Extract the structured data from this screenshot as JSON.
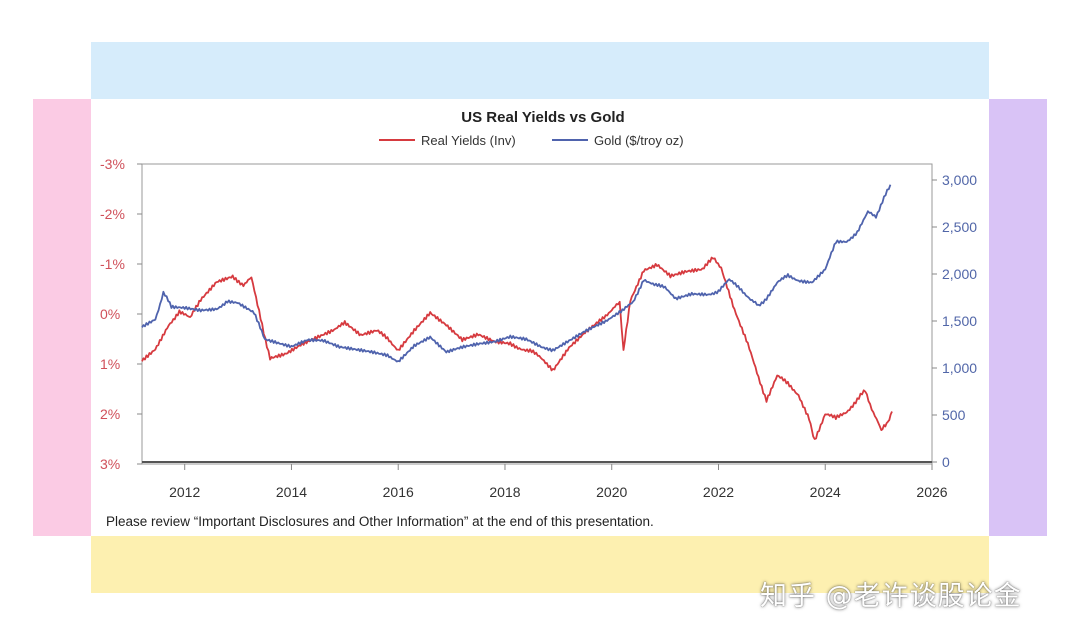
{
  "colors": {
    "band_top": "#d6ecfb",
    "band_bottom": "#fdf0b0",
    "band_left": "#fbcbe4",
    "band_right": "#d9c3f6",
    "real_yields": "#d63a3f",
    "gold": "#4f63ad"
  },
  "footer": {
    "disclaimer": "Please review “Important Disclosures and Other Information” at the end of this presentation."
  },
  "watermark": "知乎 @老许谈股论金",
  "chart_data": {
    "type": "line",
    "title": "US Real Yields vs Gold",
    "legend_position": "top-center",
    "grid": false,
    "x_axis": {
      "ticks": [
        "2012",
        "2014",
        "2016",
        "2018",
        "2020",
        "2022",
        "2024",
        "2026"
      ],
      "range": [
        2011.2,
        2026
      ]
    },
    "y_left": {
      "inverted": true,
      "range": [
        -3,
        3
      ],
      "ticks": [
        -3,
        -2,
        -1,
        0,
        1,
        2,
        3
      ],
      "tick_labels": [
        "-3%",
        "-2%",
        "-1%",
        "0%",
        "1%",
        "2%",
        "3%"
      ]
    },
    "y_right": {
      "range": [
        0,
        3000
      ],
      "ticks": [
        0,
        500,
        1000,
        1500,
        2000,
        2500,
        3000
      ],
      "tick_labels": [
        "0",
        "500",
        "1,000",
        "1,500",
        "2,000",
        "2,500",
        "3,000"
      ]
    },
    "series": [
      {
        "name": "Real Yields (Inv)",
        "axis": "left",
        "color": "#d63a3f",
        "points": [
          [
            2011.2,
            0.95
          ],
          [
            2011.45,
            0.7
          ],
          [
            2011.7,
            0.2
          ],
          [
            2011.9,
            -0.05
          ],
          [
            2012.1,
            0.1
          ],
          [
            2012.3,
            -0.3
          ],
          [
            2012.6,
            -0.65
          ],
          [
            2012.9,
            -0.75
          ],
          [
            2013.1,
            -0.6
          ],
          [
            2013.25,
            -0.7
          ],
          [
            2013.45,
            0.2
          ],
          [
            2013.6,
            0.9
          ],
          [
            2013.9,
            0.8
          ],
          [
            2014.2,
            0.6
          ],
          [
            2014.5,
            0.45
          ],
          [
            2014.8,
            0.3
          ],
          [
            2015.0,
            0.2
          ],
          [
            2015.3,
            0.45
          ],
          [
            2015.6,
            0.35
          ],
          [
            2015.8,
            0.5
          ],
          [
            2016.0,
            0.7
          ],
          [
            2016.3,
            0.3
          ],
          [
            2016.6,
            -0.05
          ],
          [
            2016.9,
            0.2
          ],
          [
            2017.2,
            0.5
          ],
          [
            2017.5,
            0.4
          ],
          [
            2017.8,
            0.55
          ],
          [
            2018.1,
            0.6
          ],
          [
            2018.5,
            0.75
          ],
          [
            2018.9,
            1.1
          ],
          [
            2019.2,
            0.65
          ],
          [
            2019.5,
            0.35
          ],
          [
            2019.8,
            0.1
          ],
          [
            2020.0,
            -0.1
          ],
          [
            2020.15,
            -0.2
          ],
          [
            2020.22,
            0.7
          ],
          [
            2020.35,
            -0.3
          ],
          [
            2020.6,
            -0.9
          ],
          [
            2020.85,
            -1.0
          ],
          [
            2021.1,
            -0.75
          ],
          [
            2021.4,
            -0.85
          ],
          [
            2021.7,
            -0.9
          ],
          [
            2021.9,
            -1.1
          ],
          [
            2022.05,
            -0.95
          ],
          [
            2022.3,
            -0.1
          ],
          [
            2022.55,
            0.6
          ],
          [
            2022.75,
            1.3
          ],
          [
            2022.9,
            1.7
          ],
          [
            2023.1,
            1.25
          ],
          [
            2023.3,
            1.4
          ],
          [
            2023.5,
            1.6
          ],
          [
            2023.7,
            2.1
          ],
          [
            2023.8,
            2.5
          ],
          [
            2024.0,
            2.0
          ],
          [
            2024.2,
            2.1
          ],
          [
            2024.4,
            1.95
          ],
          [
            2024.6,
            1.7
          ],
          [
            2024.75,
            1.55
          ],
          [
            2024.9,
            1.95
          ],
          [
            2025.05,
            2.35
          ],
          [
            2025.15,
            2.2
          ],
          [
            2025.25,
            1.95
          ]
        ]
      },
      {
        "name": "Gold ($/troy oz)",
        "axis": "right",
        "color": "#4f63ad",
        "points": [
          [
            2011.2,
            1430
          ],
          [
            2011.45,
            1520
          ],
          [
            2011.6,
            1800
          ],
          [
            2011.75,
            1650
          ],
          [
            2012.0,
            1650
          ],
          [
            2012.3,
            1620
          ],
          [
            2012.6,
            1630
          ],
          [
            2012.8,
            1720
          ],
          [
            2013.0,
            1680
          ],
          [
            2013.3,
            1580
          ],
          [
            2013.5,
            1300
          ],
          [
            2013.75,
            1270
          ],
          [
            2014.0,
            1240
          ],
          [
            2014.3,
            1310
          ],
          [
            2014.6,
            1300
          ],
          [
            2014.9,
            1230
          ],
          [
            2015.2,
            1200
          ],
          [
            2015.5,
            1170
          ],
          [
            2015.8,
            1130
          ],
          [
            2016.0,
            1080
          ],
          [
            2016.3,
            1250
          ],
          [
            2016.6,
            1340
          ],
          [
            2016.9,
            1180
          ],
          [
            2017.2,
            1230
          ],
          [
            2017.5,
            1260
          ],
          [
            2017.8,
            1280
          ],
          [
            2018.1,
            1330
          ],
          [
            2018.4,
            1300
          ],
          [
            2018.7,
            1210
          ],
          [
            2018.9,
            1200
          ],
          [
            2019.2,
            1300
          ],
          [
            2019.5,
            1400
          ],
          [
            2019.8,
            1480
          ],
          [
            2020.0,
            1550
          ],
          [
            2020.2,
            1600
          ],
          [
            2020.4,
            1700
          ],
          [
            2020.6,
            1950
          ],
          [
            2020.8,
            1880
          ],
          [
            2021.0,
            1850
          ],
          [
            2021.2,
            1750
          ],
          [
            2021.5,
            1800
          ],
          [
            2021.8,
            1790
          ],
          [
            2022.0,
            1820
          ],
          [
            2022.2,
            1930
          ],
          [
            2022.4,
            1850
          ],
          [
            2022.6,
            1740
          ],
          [
            2022.75,
            1650
          ],
          [
            2022.9,
            1750
          ],
          [
            2023.1,
            1900
          ],
          [
            2023.3,
            1980
          ],
          [
            2023.5,
            1940
          ],
          [
            2023.75,
            1920
          ],
          [
            2024.0,
            2050
          ],
          [
            2024.2,
            2330
          ],
          [
            2024.4,
            2350
          ],
          [
            2024.6,
            2450
          ],
          [
            2024.8,
            2650
          ],
          [
            2024.95,
            2620
          ],
          [
            2025.1,
            2800
          ],
          [
            2025.22,
            2950
          ]
        ]
      }
    ]
  }
}
